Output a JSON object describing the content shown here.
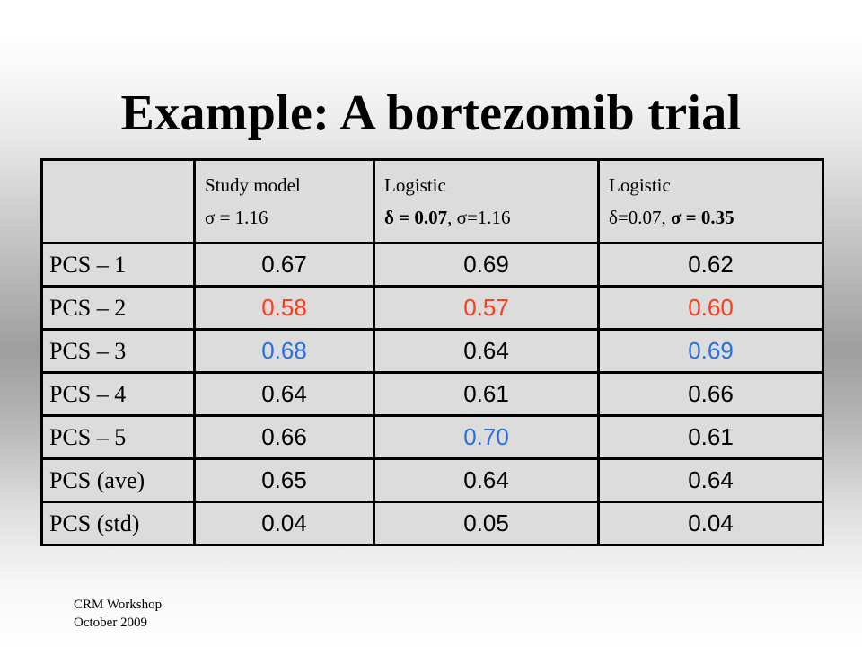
{
  "slide": {
    "title": "Example: A bortezomib trial"
  },
  "table": {
    "headers": [
      {
        "line1": "",
        "line2": ""
      },
      {
        "line1": "Study model",
        "line2": "σ = 1.16"
      },
      {
        "line1": "Logistic",
        "line2a": "δ = 0.07",
        "line2b": ", σ=1.16"
      },
      {
        "line1": "Logistic",
        "line2a": "δ=0.07, ",
        "line2b": "σ = 0.35"
      }
    ],
    "rows": [
      {
        "label": "PCS – 1",
        "values": [
          "0.67",
          "0.69",
          "0.62"
        ],
        "colors": [
          "#000000",
          "#000000",
          "#000000"
        ]
      },
      {
        "label": "PCS – 2",
        "values": [
          "0.58",
          "0.57",
          "0.60"
        ],
        "colors": [
          "#ff3b1a",
          "#ff3b1a",
          "#ff3b1a"
        ]
      },
      {
        "label": "PCS – 3",
        "values": [
          "0.68",
          "0.64",
          "0.69"
        ],
        "colors": [
          "#2a6fe0",
          "#000000",
          "#2a6fe0"
        ]
      },
      {
        "label": "PCS – 4",
        "values": [
          "0.64",
          "0.61",
          "0.66"
        ],
        "colors": [
          "#000000",
          "#000000",
          "#000000"
        ]
      },
      {
        "label": "PCS – 5",
        "values": [
          "0.66",
          "0.70",
          "0.61"
        ],
        "colors": [
          "#000000",
          "#2a6fe0",
          "#000000"
        ]
      },
      {
        "label": "PCS (ave)",
        "values": [
          "0.65",
          "0.64",
          "0.64"
        ],
        "colors": [
          "#000000",
          "#000000",
          "#000000"
        ]
      },
      {
        "label": "PCS (std)",
        "values": [
          "0.04",
          "0.05",
          "0.04"
        ],
        "colors": [
          "#000000",
          "#000000",
          "#000000"
        ]
      }
    ]
  },
  "footer": {
    "line1": "CRM Workshop",
    "line2": "October 2009"
  }
}
